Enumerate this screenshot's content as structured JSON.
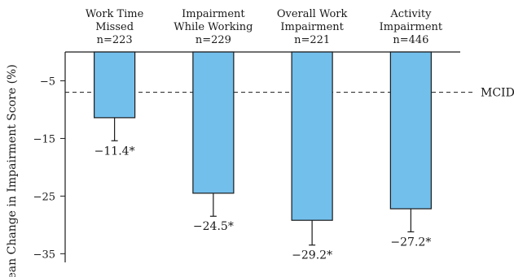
{
  "chart_data": {
    "type": "bar",
    "categories": [
      {
        "lines": [
          "Work Time",
          "Missed"
        ],
        "n": "n=223"
      },
      {
        "lines": [
          "Impairment",
          "While Working"
        ],
        "n": "n=229"
      },
      {
        "lines": [
          "Overall Work",
          "Impairment"
        ],
        "n": "n=221"
      },
      {
        "lines": [
          "Activity",
          "Impairment"
        ],
        "n": "n=446"
      }
    ],
    "values": [
      -11.4,
      -24.5,
      -29.2,
      -27.2
    ],
    "errors_lower": [
      4.0,
      4.0,
      4.3,
      4.0
    ],
    "value_labels": [
      "−11.4*",
      "−24.5*",
      "−29.2*",
      "−27.2*"
    ],
    "ylabel": "Mean Change in Impairment Score (%)",
    "ylim": [
      -36.5,
      0
    ],
    "yticks": [
      -5,
      -15,
      -25,
      -35
    ],
    "ytick_labels": [
      "−5",
      "−15",
      "−25",
      "−35"
    ],
    "reference_line": {
      "value": -7,
      "label": "MCID",
      "style": "dashed"
    },
    "bar_color": "#72bfec",
    "bar_edge_color": "#1a1a1a",
    "grid": false
  }
}
